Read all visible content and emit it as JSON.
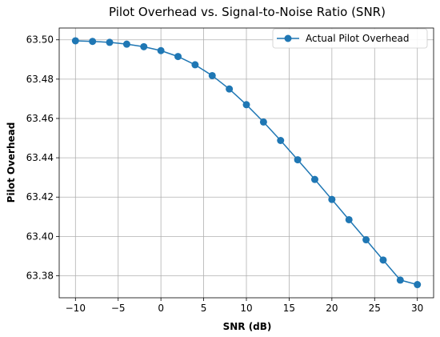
{
  "chart_data": {
    "type": "line",
    "title": "Pilot Overhead vs. Signal-to-Noise Ratio (SNR)",
    "xlabel": "SNR (dB)",
    "ylabel": "Pilot Overhead",
    "xlim": [
      -11.9,
      31.9
    ],
    "ylim": [
      63.3688,
      63.506
    ],
    "xticks": [
      -10,
      -5,
      0,
      5,
      10,
      15,
      20,
      25,
      30
    ],
    "xtick_labels": [
      "−10",
      "−5",
      "0",
      "5",
      "10",
      "15",
      "20",
      "25",
      "30"
    ],
    "yticks": [
      63.38,
      63.4,
      63.42,
      63.44,
      63.46,
      63.48,
      63.5
    ],
    "ytick_labels": [
      "63.38",
      "63.40",
      "63.42",
      "63.44",
      "63.46",
      "63.48",
      "63.50"
    ],
    "grid": true,
    "legend_position": "top-right",
    "series": [
      {
        "name": "Actual Pilot Overhead",
        "color": "#1f77b4",
        "marker": "circle",
        "x": [
          -10,
          -8,
          -6,
          -4,
          -2,
          0,
          2,
          4,
          6,
          8,
          10,
          12,
          14,
          16,
          18,
          20,
          22,
          24,
          26,
          28,
          30
        ],
        "y": [
          63.4995,
          63.4992,
          63.4987,
          63.4978,
          63.4965,
          63.4945,
          63.4915,
          63.4873,
          63.4818,
          63.475,
          63.467,
          63.4582,
          63.4488,
          63.439,
          63.429,
          63.4188,
          63.4085,
          63.3983,
          63.388,
          63.3778,
          63.3755
        ]
      }
    ]
  }
}
